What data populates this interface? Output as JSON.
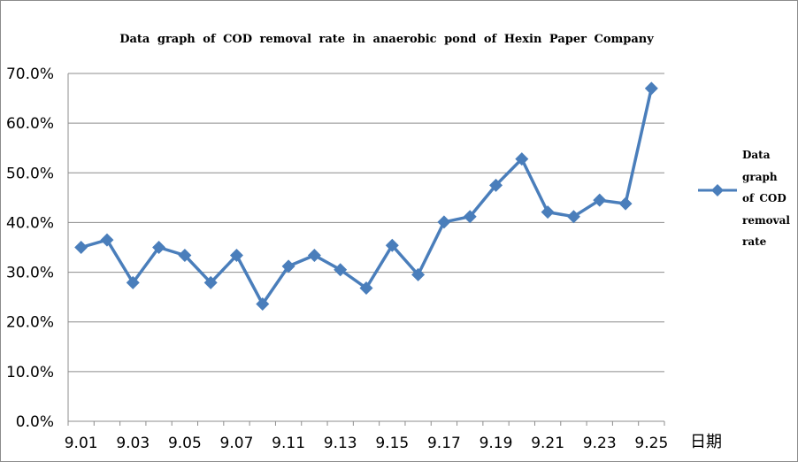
{
  "chart_data": {
    "type": "line",
    "title": "Data graph of COD removal rate in anaerobic pond of  Hexin  Paper  Company",
    "xlabel": "日期",
    "ylabel": "",
    "x": [
      "9.01",
      "9.02",
      "9.03",
      "9.04",
      "9.05",
      "9.06",
      "9.07",
      "9.08",
      "9.11",
      "9.12",
      "9.13",
      "9.14",
      "9.15",
      "9.16",
      "9.17",
      "9.18",
      "9.19",
      "9.20",
      "9.21",
      "9.22",
      "9.23",
      "9.24",
      "9.25"
    ],
    "x_tick_labels": [
      "9.01",
      "9.03",
      "9.05",
      "9.07",
      "9.11",
      "9.13",
      "9.15",
      "9.17",
      "9.19",
      "9.21",
      "9.23",
      "9.25"
    ],
    "y_tick_labels": [
      "70.0%",
      "60.0%",
      "50.0%",
      "40.0%",
      "30.0%",
      "20.0%",
      "10.0%",
      "0.0%"
    ],
    "ylim": [
      0,
      0.7
    ],
    "y_ticks": [
      0,
      0.1,
      0.2,
      0.3,
      0.4,
      0.5,
      0.6,
      0.7
    ],
    "grid": true,
    "legend_position": "right",
    "series": [
      {
        "name": "Data graph of COD removal rate",
        "color": "#4a7ebb",
        "marker": "diamond",
        "values": [
          0.35,
          0.365,
          0.279,
          0.35,
          0.334,
          0.279,
          0.334,
          0.236,
          0.312,
          0.334,
          0.305,
          0.268,
          0.354,
          0.295,
          0.401,
          0.412,
          0.475,
          0.528,
          0.421,
          0.412,
          0.445,
          0.438,
          0.67
        ]
      }
    ]
  }
}
